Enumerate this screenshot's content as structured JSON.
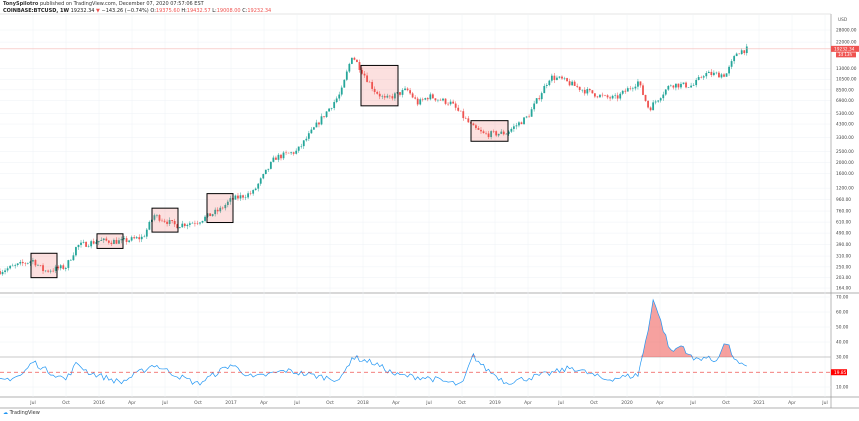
{
  "header": {
    "author": "TonySpilotro",
    "published": "published on TradingView.com, December 07, 2020 07:57:06 EST",
    "symbol": "COINBASE:BTCUSD, 1W",
    "last": "19232.34",
    "change": "−143.26 (−0.74%)",
    "o_label": "O:",
    "o": "19375.60",
    "h_label": "H:",
    "h": "19432.57",
    "l_label": "L:",
    "l": "19008.00",
    "c_label": "C:",
    "c": "19232.34"
  },
  "logo": "TradingView",
  "colors": {
    "up": "#26a69a",
    "down": "#ef5350",
    "indicator": "#2196f3",
    "fill": "#ef5350"
  },
  "chart_data": [
    {
      "type": "candlestick",
      "scale": "log",
      "currency": "USD",
      "y_ticks": [
        "28000.00",
        "22000.00",
        "13000.00",
        "10500.00",
        "8500.00",
        "6900.00",
        "5300.00",
        "4300.00",
        "3300.00",
        "2500.00",
        "2000.00",
        "1600.00",
        "1200.00",
        "960.00",
        "760.00",
        "610.00",
        "490.00",
        "390.00",
        "310.00",
        "250.00",
        "203.00",
        "164.00"
      ],
      "last_price_label": "19232.34",
      "countdown_label": "1d 13h",
      "x_ticks": [
        "Jul",
        "Oct",
        "2016",
        "Apr",
        "Jul",
        "Oct",
        "2017",
        "Apr",
        "Jul",
        "Oct",
        "2018",
        "Apr",
        "Jul",
        "Oct",
        "2019",
        "Apr",
        "Jul",
        "Oct",
        "2020",
        "Apr",
        "Jul",
        "Oct",
        "2021",
        "Apr",
        "Jul"
      ],
      "approx_close": [
        [
          "2015-04",
          230
        ],
        [
          "2015-07",
          285
        ],
        [
          "2015-08",
          230
        ],
        [
          "2015-10",
          250
        ],
        [
          "2015-11",
          380
        ],
        [
          "2016-01",
          420
        ],
        [
          "2016-03",
          415
        ],
        [
          "2016-05",
          450
        ],
        [
          "2016-06",
          700
        ],
        [
          "2016-08",
          570
        ],
        [
          "2016-10",
          620
        ],
        [
          "2016-12",
          780
        ],
        [
          "2017-01",
          950
        ],
        [
          "2017-03",
          1100
        ],
        [
          "2017-05",
          2200
        ],
        [
          "2017-07",
          2500
        ],
        [
          "2017-09",
          4500
        ],
        [
          "2017-11",
          8000
        ],
        [
          "2017-12",
          17000
        ],
        [
          "2018-02",
          8500
        ],
        [
          "2018-03",
          7000
        ],
        [
          "2018-05",
          8500
        ],
        [
          "2018-06",
          6500
        ],
        [
          "2018-07",
          7500
        ],
        [
          "2018-09",
          6500
        ],
        [
          "2018-11",
          4000
        ],
        [
          "2018-12",
          3500
        ],
        [
          "2019-02",
          3600
        ],
        [
          "2019-04",
          5000
        ],
        [
          "2019-06",
          11000
        ],
        [
          "2019-07",
          10500
        ],
        [
          "2019-09",
          8500
        ],
        [
          "2019-11",
          7300
        ],
        [
          "2019-12",
          7200
        ],
        [
          "2020-02",
          10000
        ],
        [
          "2020-03",
          5800
        ],
        [
          "2020-04",
          7500
        ],
        [
          "2020-05",
          9500
        ],
        [
          "2020-07",
          9200
        ],
        [
          "2020-08",
          11700
        ],
        [
          "2020-10",
          11500
        ],
        [
          "2020-11",
          18000
        ],
        [
          "2020-12",
          19232
        ]
      ]
    },
    {
      "type": "line",
      "y_ticks": [
        "70.00",
        "60.00",
        "50.00",
        "40.00",
        "30.00",
        "10.00"
      ],
      "ylim": [
        0,
        75
      ],
      "threshold_label": "19.85",
      "threshold": 19.85,
      "fill_above": 30,
      "approx_values": [
        [
          "2015-04",
          14
        ],
        [
          "2015-06",
          18
        ],
        [
          "2015-07",
          27
        ],
        [
          "2015-08",
          22
        ],
        [
          "2015-10",
          15
        ],
        [
          "2015-11",
          26
        ],
        [
          "2015-12",
          20
        ],
        [
          "2016-03",
          13
        ],
        [
          "2016-06",
          25
        ],
        [
          "2016-08",
          18
        ],
        [
          "2016-10",
          12
        ],
        [
          "2017-01",
          25
        ],
        [
          "2017-03",
          16
        ],
        [
          "2017-06",
          21
        ],
        [
          "2017-09",
          17
        ],
        [
          "2017-11",
          15
        ],
        [
          "2017-12",
          30
        ],
        [
          "2018-02",
          26
        ],
        [
          "2018-04",
          18
        ],
        [
          "2018-07",
          16
        ],
        [
          "2018-10",
          11
        ],
        [
          "2018-11",
          31
        ],
        [
          "2018-12",
          23
        ],
        [
          "2019-02",
          13
        ],
        [
          "2019-06",
          19
        ],
        [
          "2019-08",
          23
        ],
        [
          "2019-11",
          15
        ],
        [
          "2020-02",
          18
        ],
        [
          "2020-03",
          50
        ],
        [
          "2020-03",
          70
        ],
        [
          "2020-04",
          55
        ],
        [
          "2020-05",
          33
        ],
        [
          "2020-06",
          38
        ],
        [
          "2020-07",
          28
        ],
        [
          "2020-08",
          30
        ],
        [
          "2020-09",
          27
        ],
        [
          "2020-10",
          40
        ],
        [
          "2020-11",
          26
        ],
        [
          "2020-12",
          22
        ]
      ]
    }
  ],
  "boxes": [
    [
      "2015-07",
      "2015-08"
    ],
    [
      "2016-01",
      "2016-02"
    ],
    [
      "2016-06",
      "2016-07"
    ],
    [
      "2016-11",
      "2016-12"
    ],
    [
      "2018-01",
      "2018-03"
    ],
    [
      "2018-11",
      "2019-01"
    ]
  ]
}
